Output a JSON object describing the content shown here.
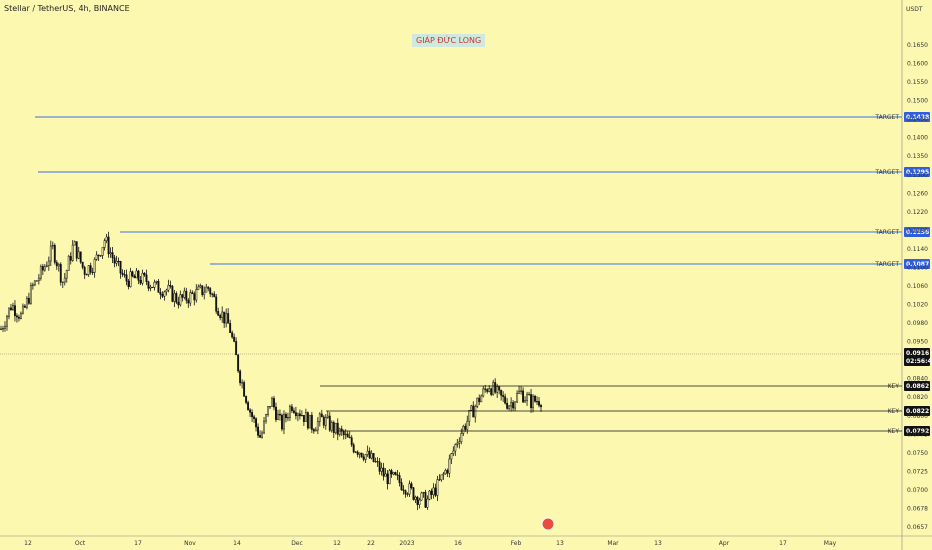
{
  "header": {
    "title": "Stellar / TetherUS, 4h, BINANCE",
    "currency": "USDT",
    "watermark": "GIÁP ĐỨC LONG"
  },
  "colors": {
    "background": "#fdf8b0",
    "target_line": "#3d6ee6",
    "key_line": "#111111",
    "candle": "#111111"
  },
  "chart_data": {
    "type": "candlestick",
    "y_ticks": [
      "0.1650",
      "0.1600",
      "0.1550",
      "0.1500",
      "0.1450",
      "0.1400",
      "0.1350",
      "0.1300",
      "0.1260",
      "0.1220",
      "0.1180",
      "0.1140",
      "0.1100",
      "0.1060",
      "0.1020",
      "0.0980",
      "0.0950",
      "0.0890",
      "0.0840",
      "0.0820",
      "0.0800",
      "0.0775",
      "0.0750",
      "0.0725",
      "0.0700",
      "0.0678",
      "0.0657"
    ],
    "x_ticks": [
      "12",
      "Oct",
      "17",
      "Nov",
      "14",
      "Dec",
      "12",
      "22",
      "2023",
      "16",
      "Feb",
      "13",
      "Mar",
      "13",
      "Apr",
      "17",
      "May"
    ],
    "levels": [
      {
        "kind": "target",
        "label": "TARGET",
        "value": "0.1438"
      },
      {
        "kind": "target",
        "label": "TARGET",
        "value": "0.1295"
      },
      {
        "kind": "target",
        "label": "TARGET",
        "value": "0.1156"
      },
      {
        "kind": "target",
        "label": "TARGET",
        "value": "0.1087"
      },
      {
        "kind": "key",
        "label": "KEY",
        "value": "0.0862"
      },
      {
        "kind": "key",
        "label": "KEY",
        "value": "0.0822"
      },
      {
        "kind": "key",
        "label": "KEY",
        "value": "0.0792"
      }
    ],
    "last_price": "0.0916",
    "countdown": "02:56:46",
    "path_closes": [
      0.1065,
      0.1115,
      0.109,
      0.115,
      0.1185,
      0.123,
      0.116,
      0.124,
      0.1185,
      0.12,
      0.125,
      0.12,
      0.1165,
      0.117,
      0.1165,
      0.115,
      0.1145,
      0.1125,
      0.113,
      0.114,
      0.115,
      0.1105,
      0.107,
      0.097,
      0.0895,
      0.084,
      0.092,
      0.0865,
      0.091,
      0.089,
      0.0865,
      0.088,
      0.086,
      0.0845,
      0.0822,
      0.0808,
      0.079,
      0.076,
      0.0755,
      0.074,
      0.072,
      0.071,
      0.074,
      0.078,
      0.084,
      0.088,
      0.092,
      0.095,
      0.0925,
      0.091,
      0.0935,
      0.0915,
      0.092
    ]
  }
}
